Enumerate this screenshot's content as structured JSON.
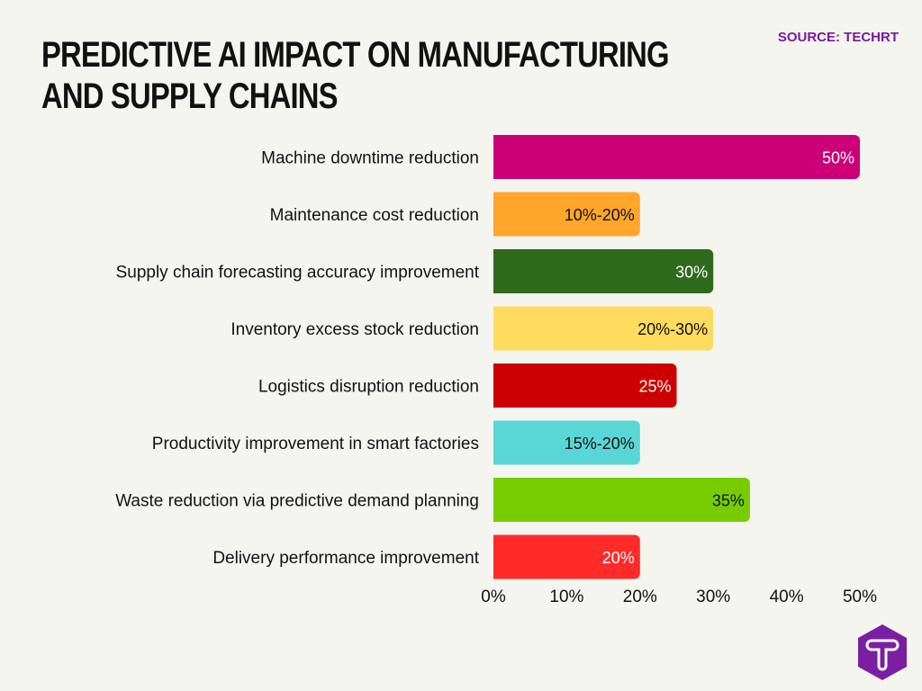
{
  "title": "Predictive AI Impact on Manufacturing and Supply Chains",
  "source": "SOURCE: TECHRT",
  "logo_text": "T",
  "chart_data": {
    "type": "bar",
    "orientation": "horizontal",
    "categories": [
      "Machine downtime reduction",
      "Maintenance cost reduction",
      "Supply chain forecasting accuracy improvement",
      "Inventory excess stock reduction",
      "Logistics disruption reduction",
      "Productivity improvement in smart factories",
      "Waste reduction via predictive demand planning",
      "Delivery performance improvement"
    ],
    "values": [
      50,
      20,
      30,
      30,
      25,
      20,
      35,
      20
    ],
    "data_labels": [
      "50%",
      "10%-20%",
      "30%",
      "20%-30%",
      "25%",
      "15%-20%",
      "35%",
      "20%"
    ],
    "colors": [
      "#cc0077",
      "#ffa62b",
      "#2e6a1c",
      "#ffdc5e",
      "#cc0000",
      "#5ad6d6",
      "#77cc00",
      "#ff2b2b"
    ],
    "label_colors": [
      "#ffffff",
      "#111111",
      "#ffffff",
      "#111111",
      "#ffffff",
      "#111111",
      "#111111",
      "#ffffff"
    ],
    "xlim": [
      0,
      50
    ],
    "xticks": [
      "0%",
      "10%",
      "20%",
      "30%",
      "40%",
      "50%"
    ],
    "grid": false,
    "xlabel": "",
    "ylabel": ""
  }
}
